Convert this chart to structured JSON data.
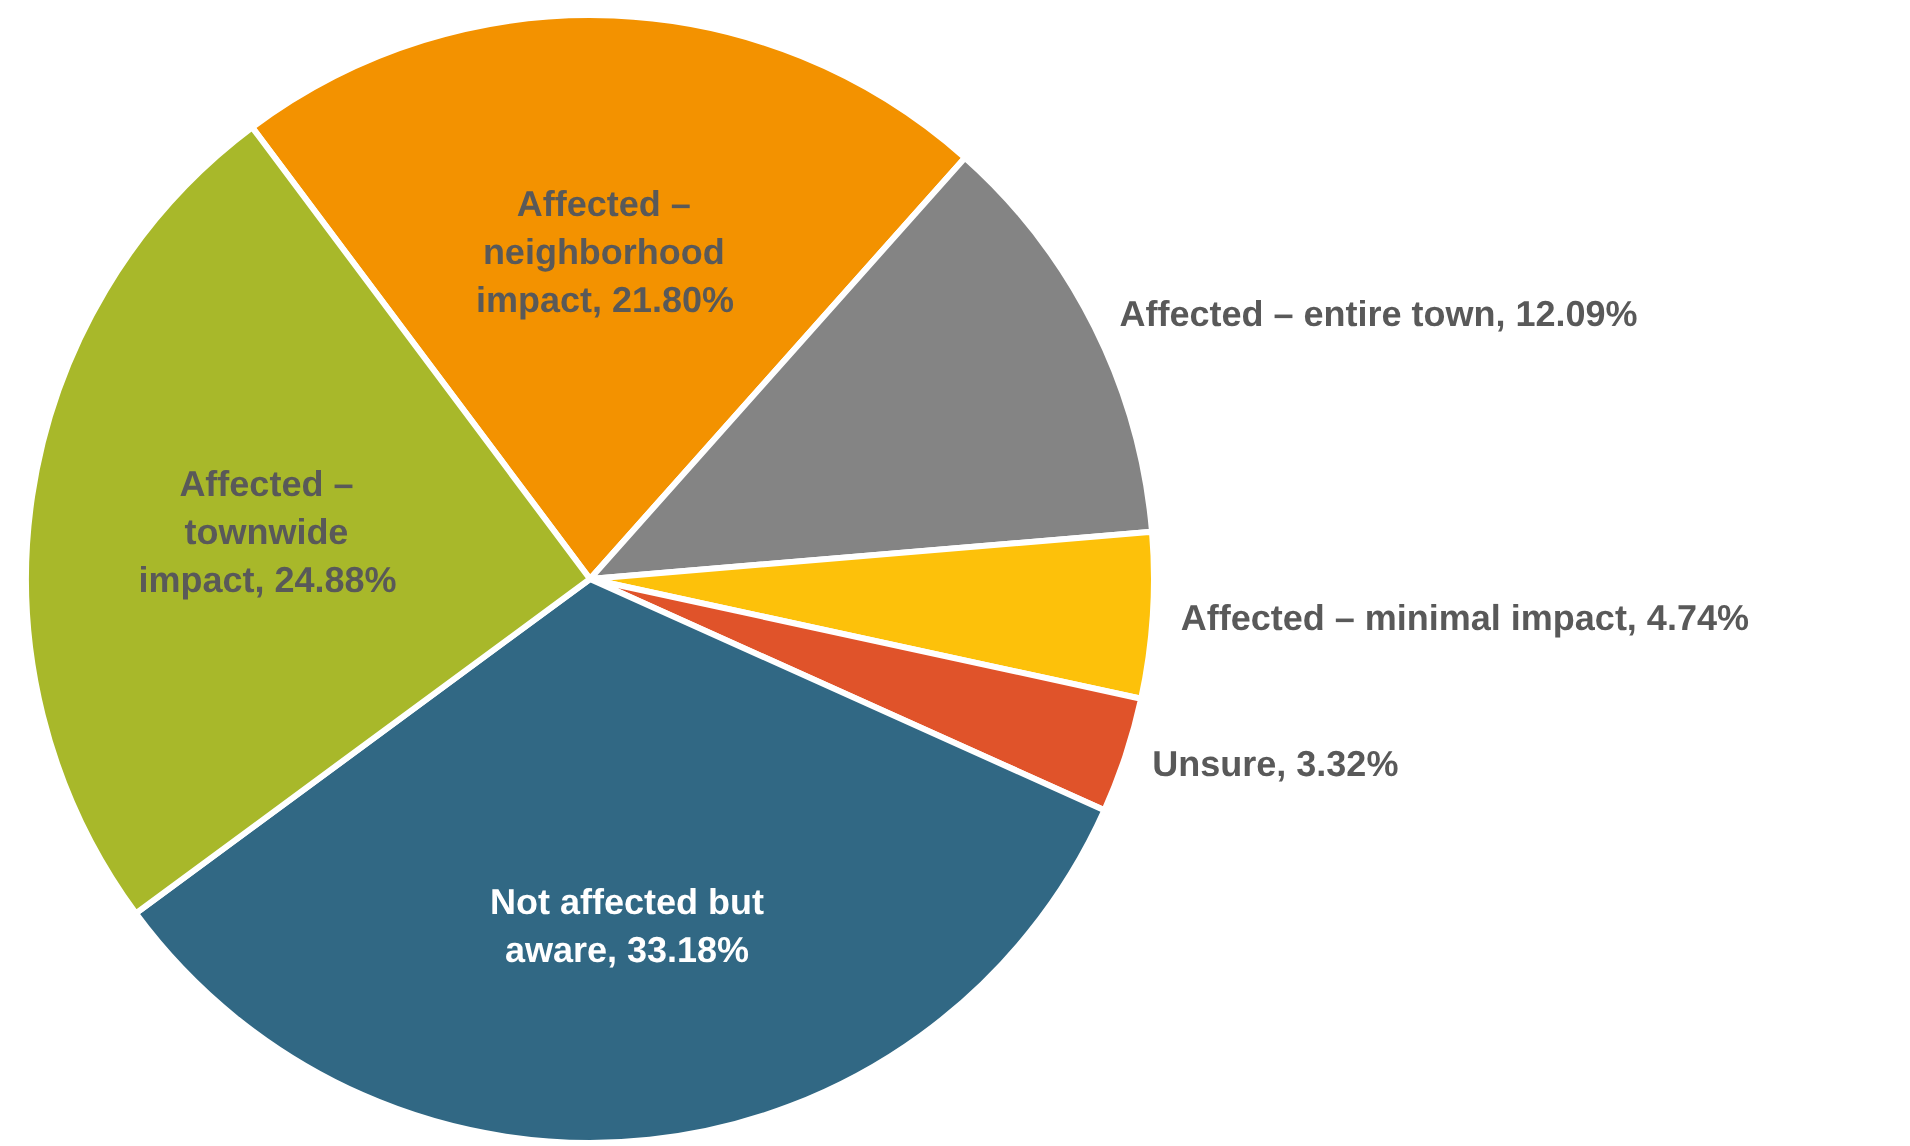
{
  "chart_data": {
    "type": "pie",
    "categories": [
      "Affected – neighborhood impact",
      "Affected – entire town",
      "Affected – minimal impact",
      "Unsure",
      "Not affected but aware",
      "Affected – townwide impact"
    ],
    "values": [
      21.8,
      12.09,
      4.74,
      3.32,
      33.18,
      24.88
    ],
    "value_labels": [
      "21.80%",
      "12.09%",
      "4.74%",
      "3.32%",
      "33.18%",
      "24.88%"
    ],
    "colors": [
      "#f39200",
      "#848484",
      "#fdc10a",
      "#e0532a",
      "#316884",
      "#a8b82a"
    ],
    "legend": false
  }
}
